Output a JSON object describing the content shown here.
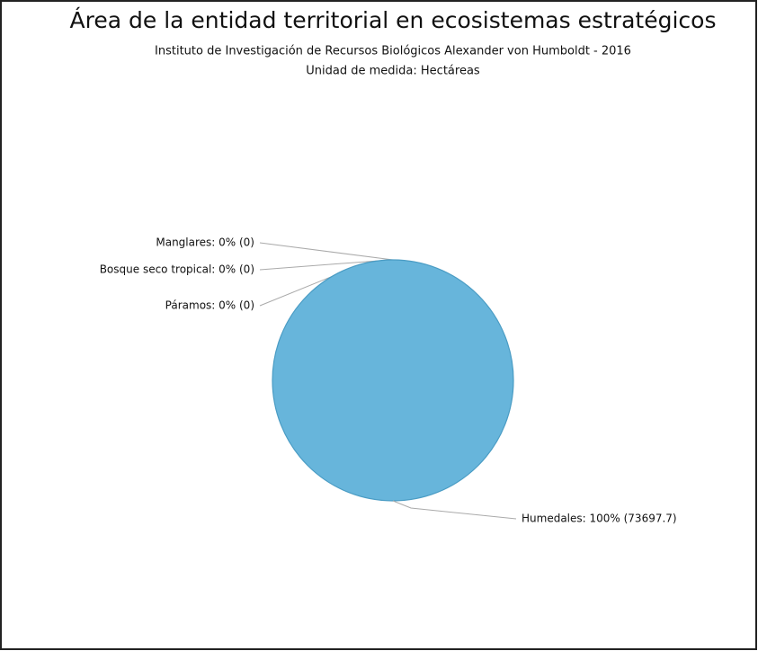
{
  "chart_data": {
    "type": "pie",
    "title": "Área de la entidad territorial en ecosistemas estratégicos",
    "subtitle": "Instituto de Investigación de Recursos Biológicos Alexander von Humboldt - 2016",
    "subtitle2": "Unidad de medida: Hectáreas",
    "labels": [
      "Manglares: 0% (0)",
      "Bosque seco tropical: 0% (0)",
      "Páramos: 0% (0)",
      "Humedales: 100% (73697.7)"
    ],
    "values": [
      0,
      0,
      0,
      73697.7
    ],
    "colors": [
      "#67b5db",
      "#67b5db",
      "#67b5db",
      "#67b5db"
    ]
  }
}
